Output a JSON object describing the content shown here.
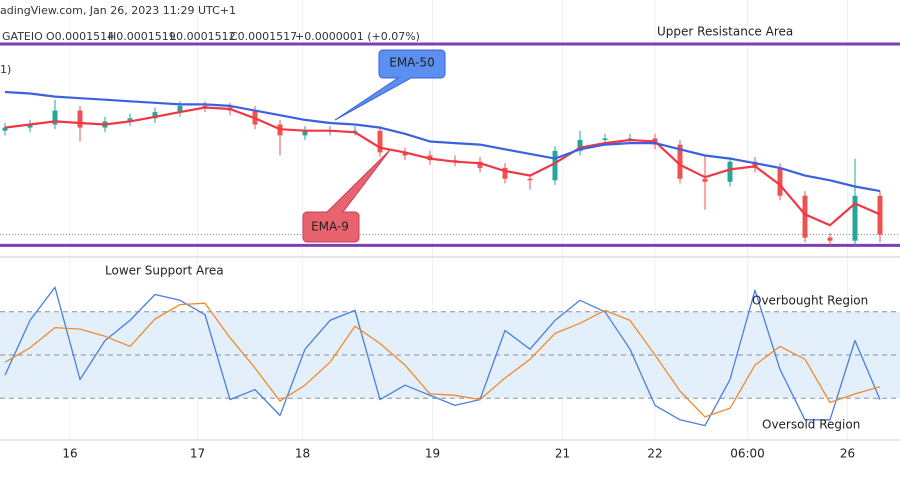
{
  "header": {
    "source": "adingView.com, Jan 26, 2023 11:29 UTC+1",
    "symbol": "GATEIO",
    "ohlc": [
      "O0.0001514",
      "H0.0001519",
      "L0.0001512",
      "C0.0001517",
      "+0.0000001 (+0.07%)"
    ],
    "indicator": "1)"
  },
  "chart_data": [
    {
      "type": "candlestick",
      "annotations": {
        "upper": "Upper Resistance Area",
        "ema50": "EMA-50",
        "ema9": "EMA-9"
      },
      "xlim": [
        -0.2,
        35.8
      ],
      "xticks": [
        {
          "value": 2.6,
          "label": "16"
        },
        {
          "value": 7.7,
          "label": "17"
        },
        {
          "value": 11.9,
          "label": "18"
        },
        {
          "value": 17.1,
          "label": "19"
        },
        {
          "value": 22.3,
          "label": "21"
        },
        {
          "value": 26,
          "label": "22"
        },
        {
          "value": 29.7,
          "label": "06:00"
        },
        {
          "value": 33.7,
          "label": "26"
        }
      ],
      "ylim": [
        0.0001507,
        0.0001649
      ],
      "resistance": 0.000164,
      "support": 0.000151,
      "level_color": "#7b3fb5",
      "up_color": "#26a69a",
      "down_color": "#ef5350",
      "open": [
        0.0001584,
        0.0001586,
        0.0001588,
        0.0001597,
        0.0001586,
        0.000159,
        0.0001592,
        0.0001596,
        0.00016,
        0.0001599,
        0.0001597,
        0.0001588,
        0.0001581,
        0.0001584,
        0.0001584,
        0.0001584,
        0.000157,
        0.0001568,
        0.0001565,
        0.0001564,
        0.000156,
        0.0001553,
        0.0001552,
        0.0001571,
        0.0001578,
        0.0001579,
        0.0001579,
        0.0001575,
        0.0001553,
        0.0001551,
        0.0001564,
        0.000156,
        0.0001542,
        0.0001515,
        0.0001513,
        0.0001542
      ],
      "high": [
        0.0001589,
        0.0001591,
        0.0001604,
        0.00016,
        0.0001593,
        0.0001595,
        0.0001599,
        0.0001603,
        0.0001603,
        0.0001602,
        0.00016,
        0.0001591,
        0.0001587,
        0.0001587,
        0.0001587,
        0.0001587,
        0.0001573,
        0.0001571,
        0.0001568,
        0.0001567,
        0.0001563,
        0.0001556,
        0.0001574,
        0.0001584,
        0.0001582,
        0.0001582,
        0.0001582,
        0.0001578,
        0.0001568,
        0.0001567,
        0.0001567,
        0.0001563,
        0.0001545,
        0.0001518,
        0.0001566,
        0.0001545
      ],
      "low": [
        0.0001581,
        0.0001583,
        0.0001585,
        0.0001577,
        0.0001583,
        0.0001587,
        0.0001589,
        0.0001593,
        0.0001596,
        0.0001594,
        0.0001585,
        0.0001568,
        0.0001578,
        0.0001581,
        0.0001581,
        0.0001567,
        0.0001565,
        0.0001562,
        0.0001561,
        0.0001557,
        0.000155,
        0.0001546,
        0.0001549,
        0.0001568,
        0.0001575,
        0.0001576,
        0.0001572,
        0.000155,
        0.0001533,
        0.0001548,
        0.0001557,
        0.0001539,
        0.0001512,
        0.000151,
        0.000151,
        0.0001512
      ],
      "close": [
        0.0001586,
        0.0001588,
        0.0001597,
        0.0001586,
        0.000159,
        0.0001592,
        0.0001596,
        0.00016,
        0.0001599,
        0.0001597,
        0.0001588,
        0.0001581,
        0.0001584,
        0.0001584,
        0.0001584,
        0.000157,
        0.0001568,
        0.0001565,
        0.0001564,
        0.000156,
        0.0001553,
        0.0001552,
        0.0001571,
        0.0001578,
        0.0001579,
        0.0001579,
        0.0001575,
        0.0001553,
        0.0001551,
        0.0001564,
        0.000156,
        0.0001542,
        0.0001515,
        0.0001513,
        0.0001542,
        0.0001517
      ],
      "series": [
        {
          "color": "#f23645",
          "values": [
            0.0001586,
            0.0001588,
            0.000159,
            0.0001589,
            0.0001588,
            0.000159,
            0.0001593,
            0.0001596,
            0.0001599,
            0.0001598,
            0.0001592,
            0.0001585,
            0.0001584,
            0.0001584,
            0.0001583,
            0.0001573,
            0.000157,
            0.0001566,
            0.0001564,
            0.0001563,
            0.0001558,
            0.0001555,
            0.0001563,
            0.0001573,
            0.0001576,
            0.0001578,
            0.0001577,
            0.0001562,
            0.0001554,
            0.0001559,
            0.0001561,
            0.0001549,
            0.000153,
            0.0001523,
            0.0001537,
            0.000153
          ]
        },
        {
          "color": "#3a62e0",
          "values": [
            0.0001609,
            0.0001608,
            0.0001606,
            0.0001605,
            0.0001604,
            0.0001603,
            0.0001602,
            0.0001601,
            0.0001601,
            0.00016,
            0.0001597,
            0.0001594,
            0.0001591,
            0.0001589,
            0.0001588,
            0.0001586,
            0.0001582,
            0.0001577,
            0.0001576,
            0.0001575,
            0.0001572,
            0.0001569,
            0.0001566,
            0.0001572,
            0.0001575,
            0.0001576,
            0.0001576,
            0.0001572,
            0.0001568,
            0.0001566,
            0.0001563,
            0.000156,
            0.0001555,
            0.0001552,
            0.0001548,
            0.0001545
          ]
        }
      ]
    },
    {
      "type": "line",
      "annotations": {
        "lower": "Lower Support Area",
        "overbought": "Overbought Region",
        "oversold": "Oversold Region"
      },
      "ylim": [
        0,
        100
      ],
      "levels": [
        80,
        50,
        20
      ],
      "band_color": "#e3f0fb",
      "series": [
        {
          "color": "#4a7fe0",
          "values": [
            36,
            74,
            97,
            33,
            60,
            74,
            92,
            88,
            78,
            19,
            26,
            8,
            54,
            74,
            81,
            19,
            29,
            22,
            15,
            19,
            67,
            54,
            74,
            88,
            80,
            54,
            15,
            5,
            1,
            33,
            95,
            40,
            5,
            5,
            60,
            19
          ]
        },
        {
          "color": "#f08a2e",
          "values": [
            45,
            55,
            69,
            68,
            63,
            56,
            75,
            85,
            86,
            62,
            41,
            18,
            29,
            45,
            70,
            58,
            43,
            23,
            22,
            19,
            34,
            47,
            65,
            72,
            81,
            74,
            50,
            25,
            7,
            13,
            43,
            56,
            47,
            17,
            23,
            28
          ]
        }
      ]
    }
  ]
}
